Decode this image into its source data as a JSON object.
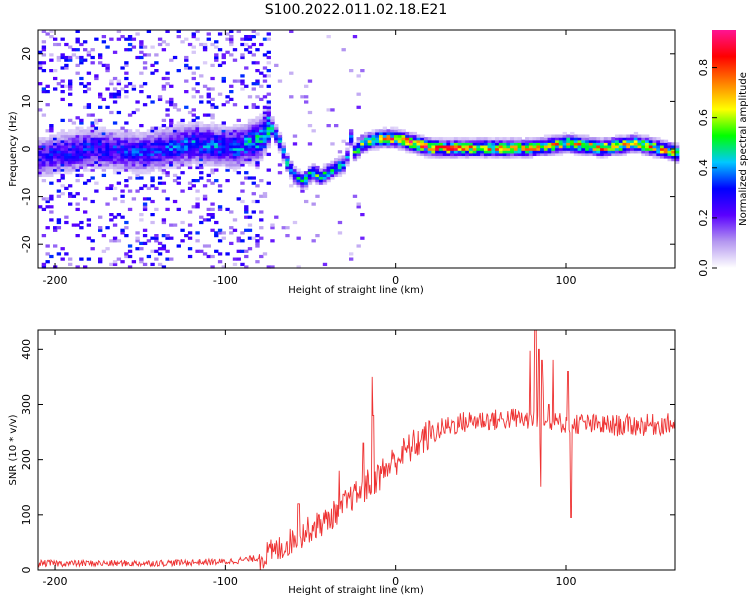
{
  "figure_title": "S100.2022.011.02.18.E21",
  "chart_data": [
    {
      "type": "heatmap",
      "xlabel": "Height of straight line (km)",
      "ylabel": "Frequency (Hz)",
      "xlim": [
        -210,
        164
      ],
      "ylim": [
        -25,
        25
      ],
      "x_ticks": [
        -200,
        -100,
        0,
        100
      ],
      "y_ticks": [
        -20,
        -10,
        0,
        10,
        20
      ],
      "colorbar": {
        "label": "Normalized spectral amplitude",
        "range": [
          0.0,
          0.95
        ],
        "ticks": [
          "0.0",
          "0.2",
          "0.4",
          "0.6",
          "0.8"
        ],
        "colors": [
          "#ffffff",
          "#b497f0",
          "#5a00ff",
          "#0000ff",
          "#00c8ff",
          "#00ff00",
          "#ffff00",
          "#ff8000",
          "#ff0000",
          "#ff1493"
        ]
      },
      "ridge_trace": {
        "x": [
          -210,
          -180,
          -150,
          -120,
          -95,
          -80,
          -75,
          -70,
          -65,
          -60,
          -55,
          -50,
          -45,
          -40,
          -35,
          -30,
          -28,
          -25,
          -20,
          -10,
          0,
          20,
          40,
          60,
          80,
          100,
          120,
          140,
          164
        ],
        "freq": [
          -2,
          0,
          -1,
          1,
          0,
          2,
          5,
          2,
          -3,
          -6,
          -7,
          -5,
          -6,
          -5,
          -4,
          -3,
          3,
          -1,
          1,
          2,
          2,
          0,
          0,
          0,
          0,
          1,
          0,
          1,
          -1
        ],
        "peak_amplitude": [
          0.3,
          0.35,
          0.35,
          0.4,
          0.4,
          0.5,
          0.6,
          0.5,
          0.45,
          0.5,
          0.5,
          0.55,
          0.55,
          0.5,
          0.5,
          0.45,
          0.5,
          0.55,
          0.65,
          0.75,
          0.85,
          0.85,
          0.8,
          0.8,
          0.7,
          0.75,
          0.8,
          0.75,
          0.7
        ]
      }
    },
    {
      "type": "line",
      "xlabel": "Height of straight line (km)",
      "ylabel": "SNR (10 * v/v)",
      "xlim": [
        -210,
        164
      ],
      "ylim": [
        0,
        435
      ],
      "x_ticks": [
        -200,
        -100,
        0,
        100
      ],
      "y_ticks": [
        0,
        100,
        200,
        300,
        400
      ],
      "series": [
        {
          "color": "#ee3333",
          "x": [
            -210,
            -150,
            -100,
            -90,
            -80,
            -70,
            -60,
            -50,
            -40,
            -30,
            -20,
            -10,
            0,
            10,
            20,
            30,
            40,
            50,
            60,
            70,
            80,
            90,
            100,
            110,
            120,
            140,
            164
          ],
          "values": [
            12,
            12,
            15,
            18,
            22,
            35,
            55,
            75,
            90,
            120,
            145,
            170,
            200,
            225,
            245,
            260,
            268,
            272,
            272,
            275,
            270,
            265,
            268,
            265,
            262,
            262,
            265
          ]
        }
      ],
      "spikes": {
        "x": [
          -57,
          -45,
          -33,
          -19,
          -14,
          -13,
          82,
          84,
          86,
          90,
          101,
          103
        ],
        "values": [
          120,
          100,
          180,
          230,
          350,
          280,
          435,
          400,
          380,
          300,
          360,
          95
        ]
      }
    }
  ]
}
